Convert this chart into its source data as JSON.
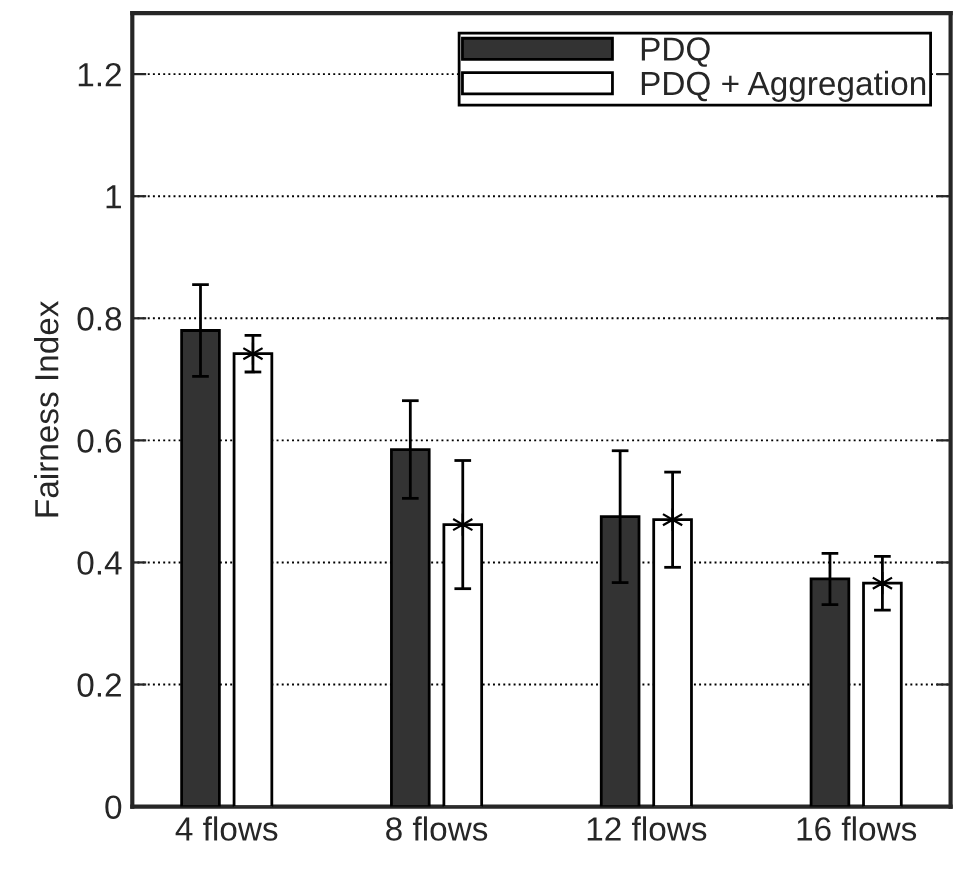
{
  "chart_data": {
    "type": "bar",
    "ylabel": "Fairness Index",
    "categories": [
      "4 flows",
      "8 flows",
      "12 flows",
      "16 flows"
    ],
    "series": [
      {
        "name": "PDQ",
        "color": "#333333",
        "values": [
          0.78,
          0.585,
          0.475,
          0.373
        ],
        "errors": [
          0.075,
          0.08,
          0.108,
          0.042
        ]
      },
      {
        "name": "PDQ + Aggregation",
        "color": "#ffffff",
        "values": [
          0.742,
          0.462,
          0.47,
          0.366
        ],
        "errors": [
          0.03,
          0.105,
          0.078,
          0.044
        ]
      },
      {
        "type": "scatter",
        "color": "#000000",
        "marker": "cross",
        "values": [
          0.742,
          0.462,
          0.47,
          0.366
        ]
      }
    ],
    "ylim": [
      0,
      1.3
    ],
    "yticks": [
      0,
      0.2,
      0.4,
      0.6,
      0.8,
      1,
      1.2
    ],
    "grid": "y",
    "line_style": "dotted",
    "legend": "top right"
  }
}
